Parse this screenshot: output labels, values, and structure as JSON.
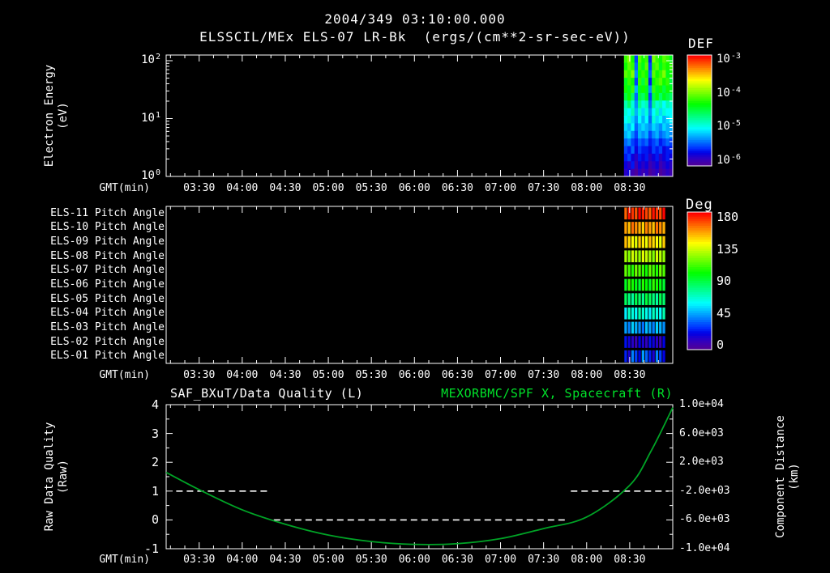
{
  "colors": {
    "background": "#000000",
    "foreground": "#ffffff",
    "accent_green": "#00e32a",
    "curve_green": "#00a326"
  },
  "header": {
    "date_title": "2004/349 03:10:00.000",
    "instrument_title": "ELSSCIL/MEx ELS-07 LR-Bk  (ergs/(cm**2-sr-sec-eV))"
  },
  "time_axis": {
    "label": "GMT(min)",
    "ticks": [
      "03:30",
      "04:00",
      "04:30",
      "05:00",
      "05:30",
      "06:00",
      "06:30",
      "07:00",
      "07:30",
      "08:00",
      "08:30"
    ],
    "start": "03:07",
    "end": "09:00"
  },
  "panel1": {
    "ylabel_line1": "Electron Energy",
    "ylabel_line2": "(eV)",
    "ytick_exponents": [
      "2",
      "1",
      "0"
    ],
    "colorbar": {
      "title": "DEF",
      "tick_exponents": [
        "-3",
        "-4",
        "-5",
        "-6"
      ]
    }
  },
  "panel2": {
    "row_labels": [
      "ELS-11 Pitch Angle",
      "ELS-10 Pitch Angle",
      "ELS-09 Pitch Angle",
      "ELS-08 Pitch Angle",
      "ELS-07 Pitch Angle",
      "ELS-06 Pitch Angle",
      "ELS-05 Pitch Angle",
      "ELS-04 Pitch Angle",
      "ELS-03 Pitch Angle",
      "ELS-02 Pitch Angle",
      "ELS-01 Pitch Angle"
    ],
    "colorbar": {
      "title": "Deg",
      "ticks": [
        "180",
        "135",
        "90",
        "45",
        "0"
      ]
    }
  },
  "panel3": {
    "title_left": "SAF_BXuT/Data Quality (L)",
    "title_right": "MEXORBMC/SPF X, Spacecraft (R)",
    "ylabel_line1": "Raw Data Quality",
    "ylabel_line2": "(Raw)",
    "right_label_line1": "Component Distance",
    "right_label_line2": "(km)",
    "yticks_left": [
      "4",
      "3",
      "2",
      "1",
      "0",
      "-1"
    ],
    "yticks_right": [
      "1.0e+04",
      "6.0e+03",
      "2.0e+03",
      "-2.0e+03",
      "-6.0e+03",
      "-1.0e+04"
    ]
  },
  "chart_data": [
    {
      "type": "heatmap",
      "title": "ELSSCIL/MEx ELS-07 LR-Bk electron energy spectrogram",
      "units": "ergs/(cm**2-sr-sec-eV)",
      "y_scale": "log",
      "ylim_eV": [
        1,
        100
      ],
      "xlabel": "GMT(min)",
      "x_start": "08:26",
      "x_end": "09:00",
      "value_scale": "log10 DEF",
      "value_range": [
        -6,
        -3
      ],
      "note": "no data plotted before 08:26",
      "grid_rows_high_to_low_energy": [
        [
          -4.2,
          -4.0,
          -4.3,
          -5.5,
          -4.1,
          -4.3,
          -4.2,
          -5.6,
          -4.0,
          -4.2,
          -4.3,
          -4.1,
          -4.2,
          -4.4
        ],
        [
          -4.3,
          -4.1,
          -4.2,
          -5.4,
          -4.2,
          -4.4,
          -4.1,
          -5.5,
          -4.2,
          -4.1,
          -4.4,
          -4.2,
          -4.3,
          -4.2
        ],
        [
          -4.1,
          -4.2,
          -4.0,
          -5.3,
          -4.3,
          -4.2,
          -4.3,
          -5.4,
          -4.1,
          -4.3,
          -4.2,
          -4.0,
          -4.4,
          -4.3
        ],
        [
          -4.4,
          -4.2,
          -4.3,
          -5.5,
          -4.2,
          -4.5,
          -4.2,
          -5.6,
          -4.3,
          -4.2,
          -4.1,
          -4.3,
          -4.2,
          -4.5
        ],
        [
          -4.3,
          -4.4,
          -4.2,
          -5.2,
          -4.4,
          -4.3,
          -4.4,
          -5.3,
          -4.2,
          -4.4,
          -4.3,
          -4.5,
          -4.3,
          -4.4
        ],
        [
          -4.5,
          -4.3,
          -4.6,
          -5.4,
          -4.5,
          -4.6,
          -4.4,
          -5.5,
          -4.5,
          -4.3,
          -4.6,
          -4.4,
          -4.5,
          -4.6
        ],
        [
          -4.8,
          -4.6,
          -4.9,
          -5.3,
          -4.7,
          -4.9,
          -4.8,
          -5.4,
          -4.7,
          -4.9,
          -4.8,
          -5.0,
          -4.8,
          -4.9
        ],
        [
          -4.9,
          -5.0,
          -4.8,
          -5.2,
          -4.9,
          -5.1,
          -4.9,
          -5.3,
          -5.0,
          -4.8,
          -5.1,
          -4.9,
          -5.0,
          -5.0
        ],
        [
          -5.0,
          -4.9,
          -5.1,
          -5.3,
          -5.0,
          -5.2,
          -5.0,
          -5.4,
          -4.9,
          -5.1,
          -5.0,
          -5.2,
          -5.1,
          -5.0
        ],
        [
          -5.1,
          -5.2,
          -5.0,
          -5.4,
          -5.2,
          -5.1,
          -5.2,
          -5.3,
          -5.1,
          -5.2,
          -5.3,
          -5.1,
          -5.2,
          -5.2
        ],
        [
          -5.2,
          -5.1,
          -5.3,
          -5.5,
          -5.2,
          -5.3,
          -5.2,
          -5.5,
          -5.3,
          -5.2,
          -5.4,
          -5.3,
          -5.2,
          -5.3
        ],
        [
          -5.4,
          -5.3,
          -5.5,
          -5.6,
          -5.4,
          -5.5,
          -5.4,
          -5.6,
          -5.5,
          -5.4,
          -5.6,
          -5.5,
          -5.4,
          -5.5
        ],
        [
          -5.5,
          -5.6,
          -5.4,
          -5.7,
          -5.5,
          -5.6,
          -5.6,
          -5.7,
          -5.5,
          -5.6,
          -5.5,
          -5.7,
          -5.6,
          -5.6
        ],
        [
          -5.6,
          -5.5,
          -5.7,
          -5.8,
          -5.6,
          -5.7,
          -5.6,
          -5.8,
          -5.7,
          -5.6,
          -5.8,
          -5.7,
          -5.6,
          -5.7
        ],
        [
          -5.7,
          -5.8,
          -5.6,
          -5.9,
          -5.7,
          -5.8,
          -5.7,
          -5.9,
          -5.8,
          -5.7,
          -5.9,
          -5.8,
          -5.7,
          -5.8
        ],
        [
          -5.8,
          -5.7,
          -5.9,
          -6.0,
          -5.8,
          -5.9,
          -5.8,
          -6.0,
          -5.9,
          -5.8,
          -6.0,
          -5.9,
          -5.8,
          -5.9
        ]
      ]
    },
    {
      "type": "heatmap",
      "title": "ELS anode pitch angles",
      "units": "deg",
      "value_range": [
        0,
        180
      ],
      "x_start": "08:26",
      "x_end": "08:55",
      "rows": [
        "ELS-11",
        "ELS-10",
        "ELS-09",
        "ELS-08",
        "ELS-07",
        "ELS-06",
        "ELS-05",
        "ELS-04",
        "ELS-03",
        "ELS-02",
        "ELS-01"
      ],
      "values_deg": [
        172,
        155,
        143,
        128,
        110,
        100,
        83,
        65,
        45,
        15,
        30
      ]
    },
    {
      "type": "line",
      "title_left": "SAF_BXuT/Data Quality (L)",
      "title_right": "MEXORBMC/SPF X, Spacecraft (R)",
      "xlabel": "GMT(min)",
      "ylim_left": [
        -1,
        4
      ],
      "ylim_right_km": [
        -10000,
        10000
      ],
      "series": [
        {
          "name": "MEXORBMC/SPF X, Spacecraft",
          "axis": "right",
          "units": "km",
          "style": "solid",
          "points": [
            [
              "03:07",
              600
            ],
            [
              "03:30",
              -1800
            ],
            [
              "04:00",
              -4600
            ],
            [
              "04:30",
              -6600
            ],
            [
              "05:00",
              -8100
            ],
            [
              "05:30",
              -9000
            ],
            [
              "06:00",
              -9400
            ],
            [
              "06:30",
              -9300
            ],
            [
              "07:00",
              -8600
            ],
            [
              "07:30",
              -7200
            ],
            [
              "08:00",
              -5600
            ],
            [
              "08:30",
              -1200
            ],
            [
              "08:45",
              3600
            ],
            [
              "09:00",
              9600
            ]
          ]
        },
        {
          "name": "SAF_BXuT/Data Quality",
          "axis": "left",
          "style": "dashed",
          "segments": [
            {
              "value": 1,
              "start": "03:14",
              "end": "04:20"
            },
            {
              "value": 0,
              "start": "04:22",
              "end": "07:46"
            },
            {
              "value": 1,
              "start": "07:49",
              "end": "08:57"
            }
          ]
        }
      ]
    }
  ]
}
